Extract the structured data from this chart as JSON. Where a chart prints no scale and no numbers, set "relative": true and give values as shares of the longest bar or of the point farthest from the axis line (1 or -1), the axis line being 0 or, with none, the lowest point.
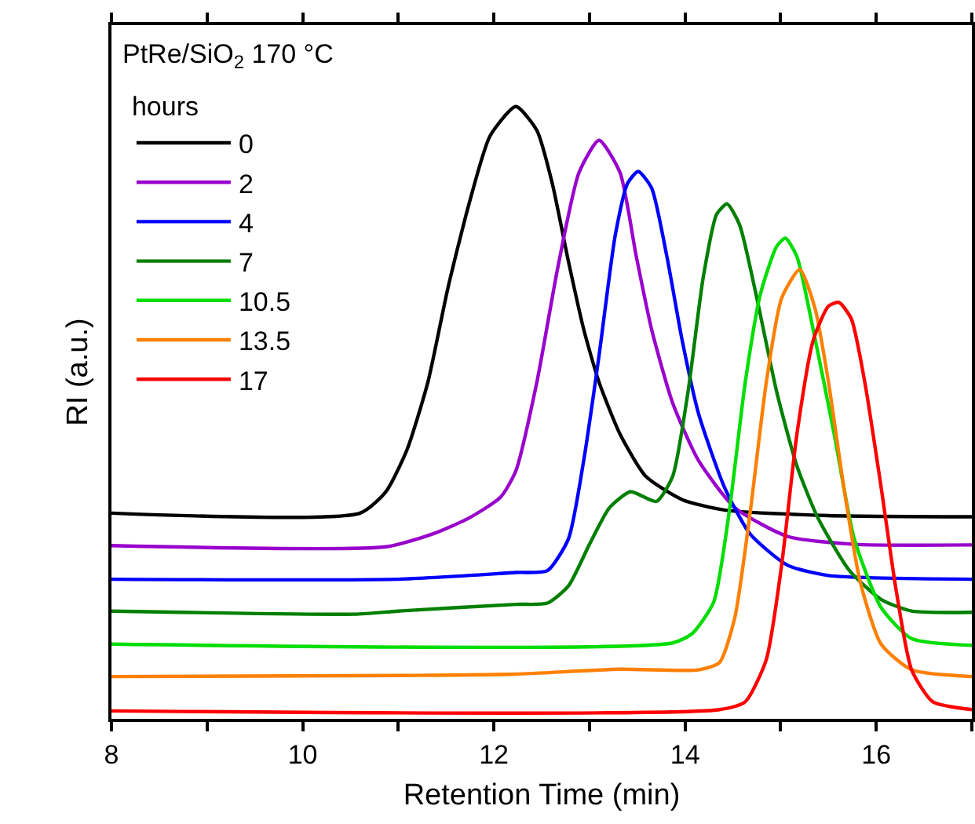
{
  "chart_data": {
    "type": "line",
    "xlabel": "Retention Time (min)",
    "ylabel": "RI (a.u.)",
    "legend_title": "hours",
    "legend": "top left",
    "relative": true,
    "grid": false,
    "marker": "none",
    "line_style": "solid",
    "annotations": [
      "PtRe/SiO$_{2}$ 170 °C"
    ],
    "xlim": [
      8,
      17
    ],
    "xticks": [
      8,
      {
        "value": 9,
        "label": null
      },
      10,
      {
        "value": 11,
        "label": null
      },
      12,
      {
        "value": 13,
        "label": null
      },
      14,
      {
        "value": 15,
        "label": null
      },
      16,
      {
        "value": 17,
        "label": null
      }
    ],
    "series": [
      {
        "name": "0",
        "color": "#000000",
        "x": [
          8,
          10.6,
          10.87,
          11.09,
          11.31,
          11.52,
          11.74,
          11.96,
          12.23,
          12.45,
          12.61,
          12.78,
          12.94,
          13.1,
          13.32,
          13.59,
          13.97,
          14.41,
          15.5,
          17
        ],
        "values": [
          0.336,
          0.336,
          0.371,
          0.439,
          0.55,
          0.704,
          0.841,
          0.952,
          1.0,
          0.961,
          0.875,
          0.747,
          0.636,
          0.55,
          0.465,
          0.396,
          0.358,
          0.341,
          0.332,
          0.33
        ]
      },
      {
        "name": "2",
        "color": "#9900cc",
        "x": [
          8,
          10.87,
          11.36,
          11.74,
          12.07,
          12.23,
          12.45,
          12.67,
          12.89,
          13.1,
          13.32,
          13.49,
          13.65,
          13.87,
          14.14,
          14.52,
          15.07,
          15.77,
          17
        ],
        "values": [
          0.283,
          0.281,
          0.302,
          0.328,
          0.362,
          0.405,
          0.55,
          0.738,
          0.892,
          0.945,
          0.892,
          0.755,
          0.636,
          0.516,
          0.422,
          0.345,
          0.298,
          0.285,
          0.284
        ]
      },
      {
        "name": "4",
        "color": "#0000ff",
        "x": [
          8,
          10.98,
          12.23,
          12.56,
          12.78,
          12.94,
          13.1,
          13.27,
          13.4,
          13.51,
          13.65,
          13.81,
          13.97,
          14.14,
          14.41,
          14.68,
          15.07,
          15.5,
          17
        ],
        "values": [
          0.228,
          0.228,
          0.239,
          0.242,
          0.294,
          0.422,
          0.593,
          0.79,
          0.875,
          0.894,
          0.867,
          0.755,
          0.618,
          0.499,
          0.379,
          0.302,
          0.251,
          0.234,
          0.228
        ]
      },
      {
        "name": "7",
        "color": "#007f00",
        "x": [
          8,
          10.54,
          11.0,
          12.23,
          12.56,
          12.78,
          13.0,
          13.21,
          13.43,
          13.7,
          13.87,
          14.03,
          14.19,
          14.33,
          14.44,
          14.57,
          14.74,
          14.96,
          15.17,
          15.39,
          15.72,
          16.05,
          16.37,
          17
        ],
        "values": [
          0.176,
          0.171,
          0.176,
          0.187,
          0.189,
          0.217,
          0.285,
          0.345,
          0.371,
          0.355,
          0.396,
          0.533,
          0.721,
          0.824,
          0.841,
          0.807,
          0.695,
          0.533,
          0.413,
          0.328,
          0.242,
          0.195,
          0.176,
          0.174
        ]
      },
      {
        "name": "10.5",
        "color": "#00dd00",
        "x": [
          8,
          13.87,
          14.08,
          14.3,
          14.46,
          14.63,
          14.79,
          14.96,
          15.05,
          15.17,
          15.34,
          15.56,
          15.77,
          16.05,
          16.37,
          17
        ],
        "values": [
          0.122,
          0.124,
          0.14,
          0.191,
          0.336,
          0.55,
          0.695,
          0.772,
          0.785,
          0.755,
          0.636,
          0.465,
          0.294,
          0.182,
          0.131,
          0.12
        ]
      },
      {
        "name": "13.5",
        "color": "#ff8000",
        "x": [
          8,
          11.2,
          12.23,
          13.32,
          14.14,
          14.36,
          14.52,
          14.68,
          14.85,
          15.01,
          15.2,
          15.36,
          15.5,
          15.66,
          15.83,
          16.05,
          16.37,
          17
        ],
        "values": [
          0.069,
          0.071,
          0.073,
          0.081,
          0.08,
          0.092,
          0.165,
          0.336,
          0.55,
          0.687,
          0.734,
          0.67,
          0.55,
          0.379,
          0.225,
          0.122,
          0.08,
          0.069
        ]
      },
      {
        "name": "17",
        "color": "#ff0000",
        "x": [
          8,
          14.36,
          14.63,
          14.85,
          15.01,
          15.17,
          15.34,
          15.5,
          15.61,
          15.74,
          15.88,
          16.05,
          16.21,
          16.37,
          16.59,
          17
        ],
        "values": [
          0.013,
          0.015,
          0.028,
          0.097,
          0.251,
          0.465,
          0.618,
          0.674,
          0.68,
          0.653,
          0.55,
          0.379,
          0.208,
          0.08,
          0.028,
          0.015
        ]
      }
    ]
  }
}
